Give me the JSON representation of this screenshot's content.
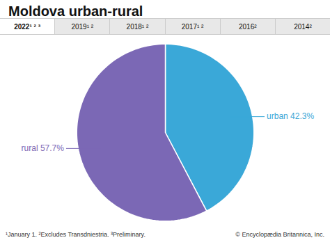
{
  "chart_data": {
    "type": "pie",
    "title": "Moldova urban-rural",
    "values": [
      42.3,
      57.7
    ],
    "value_labels": [
      "urban 42.3%",
      "rural 57.7%"
    ],
    "colors": [
      "#3aa8d8",
      "#7b68b5"
    ],
    "data_labels": true,
    "annotations": [
      "2022¹ ² ³",
      "2019¹ ²",
      "2018¹ ²",
      "2017¹ ²",
      "2016²",
      "2014²",
      "¹January 1. ²Excludes Transdniestria.  ³Preliminary.",
      "© Encyclopædia Britannica, Inc."
    ]
  }
}
